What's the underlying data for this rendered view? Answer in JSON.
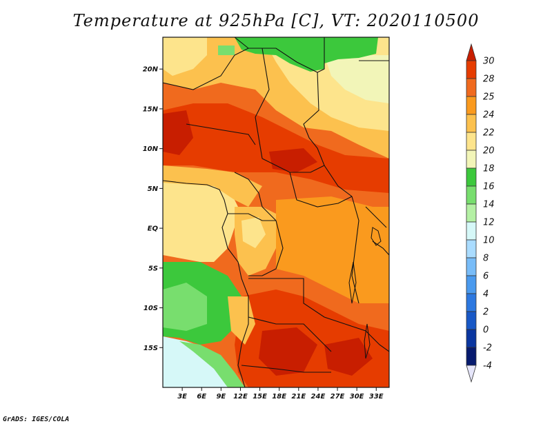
{
  "title": "Temperature at 925hPa [C], VT: 2020110500",
  "footer": "GrADS: IGES/COLA",
  "map": {
    "lon_range": [
      0,
      35
    ],
    "lat_range": [
      -20,
      24
    ],
    "lon_ticks": [
      "3E",
      "6E",
      "9E",
      "12E",
      "15E",
      "18E",
      "21E",
      "24E",
      "27E",
      "30E",
      "33E"
    ],
    "lat_ticks": [
      "20N",
      "15N",
      "10N",
      "5N",
      "EQ",
      "5S",
      "10S",
      "15S"
    ]
  },
  "colorbar": {
    "levels": [
      "30",
      "28",
      "25",
      "24",
      "22",
      "20",
      "18",
      "16",
      "14",
      "12",
      "10",
      "8",
      "6",
      "4",
      "2",
      "0",
      "-2",
      "-4"
    ],
    "colors": [
      "#c81e00",
      "#e63c00",
      "#f06a1e",
      "#fa9a1e",
      "#fcc14e",
      "#fde48c",
      "#f2f5b8",
      "#3cc83c",
      "#78de6e",
      "#b4f0a4",
      "#d6f8f8",
      "#aadcff",
      "#78bcf8",
      "#4a9aee",
      "#2c78e0",
      "#1858c6",
      "#0a36a0",
      "#061a6e",
      "#1a0a44"
    ]
  }
}
